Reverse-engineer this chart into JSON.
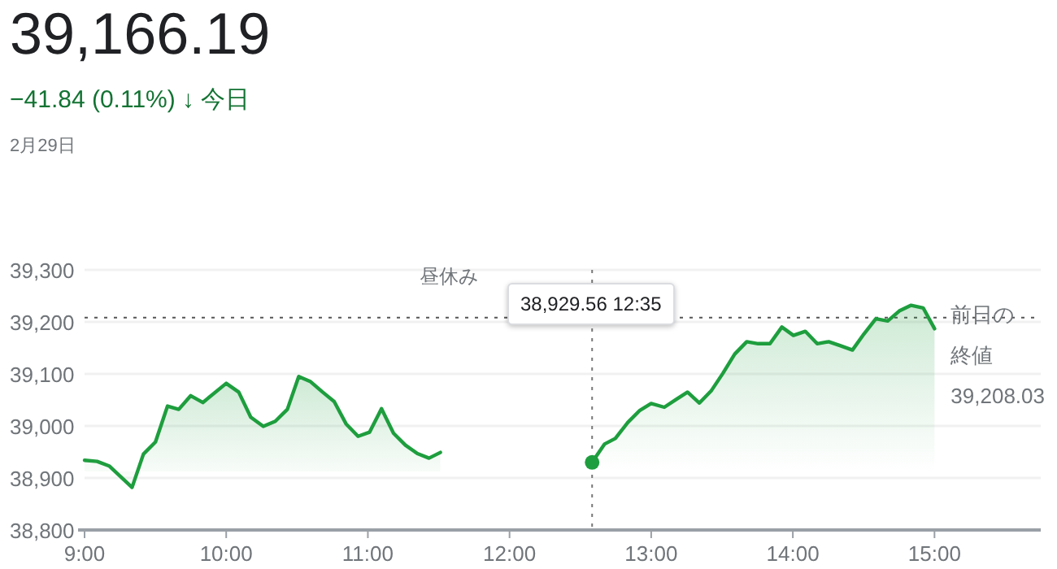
{
  "chart_data": {
    "type": "area",
    "title": "39,166.19",
    "subtitle": "−41.84 (0.11%) ↓ 今日",
    "annotations": [
      "2月29日",
      "昼休み",
      "38,929.56 12:35"
    ],
    "series": [
      {
        "color": "#1e9e3e",
        "x": [
          9.0,
          9.088,
          9.173,
          9.335,
          9.415,
          9.5,
          9.585,
          9.665,
          9.75,
          9.835,
          10.0,
          10.088,
          10.173,
          10.262,
          10.346,
          10.431,
          10.512,
          10.596,
          10.681,
          10.762,
          10.846,
          10.931,
          11.012,
          11.096,
          11.181,
          11.265,
          11.35,
          11.431,
          11.512
        ],
        "values": [
          38934,
          38932,
          38923,
          38882,
          38946,
          38969,
          39038,
          39032,
          39058,
          39045,
          39082,
          39065,
          39017,
          38999,
          39009,
          39032,
          39095,
          39085,
          39065,
          39047,
          39004,
          38980,
          38988,
          39033,
          38986,
          38963,
          38947,
          38938,
          38949
        ]
      },
      {
        "color": "#1e9e3e",
        "x": [
          12.583,
          12.67,
          12.747,
          12.835,
          12.92,
          13.0,
          13.092,
          13.176,
          13.257,
          13.341,
          13.425,
          13.506,
          13.59,
          13.674,
          13.755,
          13.839,
          13.923,
          14.004,
          14.088,
          14.172,
          14.253,
          14.337,
          14.421,
          14.502,
          14.586,
          14.67,
          14.751,
          14.835,
          14.92,
          15.0
        ],
        "values": [
          38930,
          38965,
          38976,
          39007,
          39030,
          39043,
          39036,
          39051,
          39065,
          39044,
          39068,
          39101,
          39138,
          39162,
          39158,
          39158,
          39190,
          39174,
          39182,
          39158,
          39162,
          39154,
          39146,
          39177,
          39206,
          39202,
          39221,
          39232,
          39227,
          39187
        ]
      },
      {
        "type": "scatter",
        "color": "#1e9e3e",
        "marker": "circle",
        "x": [
          12.583
        ],
        "values": [
          38930
        ]
      }
    ],
    "xlim": [
      9,
      15.75
    ],
    "ylim": [
      38800,
      39300
    ],
    "xticks": [
      {
        "value": 9,
        "label": "9:00"
      },
      {
        "value": 10,
        "label": "10:00"
      },
      {
        "value": 11,
        "label": "11:00"
      },
      {
        "value": 12,
        "label": "12:00"
      },
      {
        "value": 13,
        "label": "13:00"
      },
      {
        "value": 14,
        "label": "14:00"
      },
      {
        "value": 15,
        "label": "15:00"
      }
    ],
    "yticks": [
      {
        "value": 38800,
        "label": "38,800"
      },
      {
        "value": 38900,
        "label": "38,900"
      },
      {
        "value": 39000,
        "label": "39,000"
      },
      {
        "value": 39100,
        "label": "39,100"
      },
      {
        "value": 39200,
        "label": "39,200"
      },
      {
        "value": 39300,
        "label": "39,300"
      }
    ],
    "grid": "y",
    "marker": "none",
    "line_style": "solid",
    "ref_lines": [
      {
        "axis": "y",
        "value": 39208.03,
        "label": "前日の終値 39,208.03",
        "color": "#555555",
        "line_style": "dotted"
      },
      {
        "axis": "x",
        "value": 12.583,
        "color": "#777777",
        "line_style": "dotted"
      }
    ]
  }
}
